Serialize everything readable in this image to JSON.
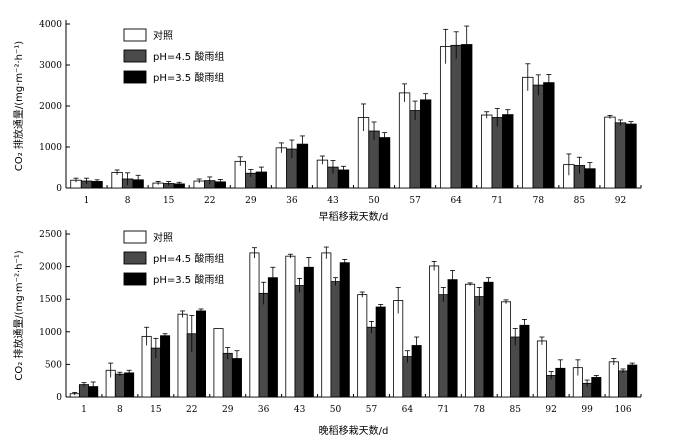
{
  "chart_data": [
    {
      "type": "bar",
      "xlabel": "早稻移栽天数/d",
      "ylabel": "CO₂ 排放通量/(mg·m⁻²·h⁻¹)",
      "ylim": [
        0,
        4000
      ],
      "yticks": [
        0,
        1000,
        2000,
        3000,
        4000
      ],
      "grid": false,
      "legend_position": "top-left",
      "categories": [
        "1",
        "8",
        "15",
        "22",
        "29",
        "36",
        "43",
        "50",
        "57",
        "64",
        "71",
        "78",
        "85",
        "92"
      ],
      "series": [
        {
          "name": "对照",
          "color": "#ffffff",
          "values": [
            190,
            380,
            120,
            170,
            650,
            980,
            680,
            1720,
            2320,
            3450,
            1780,
            2700,
            570,
            1730
          ],
          "errors": [
            50,
            60,
            40,
            50,
            110,
            120,
            100,
            330,
            220,
            420,
            80,
            330,
            260,
            40
          ]
        },
        {
          "name": "pH=4.5 酸雨组",
          "color": "#4a4a4a",
          "values": [
            170,
            220,
            110,
            180,
            360,
            950,
            510,
            1390,
            1890,
            3480,
            1720,
            2510,
            550,
            1590
          ],
          "errors": [
            70,
            150,
            50,
            90,
            90,
            220,
            160,
            220,
            230,
            330,
            220,
            250,
            200,
            70
          ]
        },
        {
          "name": "pH=3.5 酸雨组",
          "color": "#000000",
          "values": [
            160,
            200,
            100,
            150,
            390,
            1070,
            440,
            1230,
            2150,
            3500,
            1790,
            2570,
            470,
            1560
          ],
          "errors": [
            40,
            110,
            40,
            60,
            120,
            200,
            90,
            120,
            150,
            450,
            120,
            200,
            150,
            60
          ]
        }
      ]
    },
    {
      "type": "bar",
      "xlabel": "晚稻移栽天数/d",
      "ylabel": "CO₂ 排放通量/(mg·m⁻²·h⁻¹)",
      "ylim": [
        0,
        2500
      ],
      "yticks": [
        0,
        500,
        1000,
        1500,
        2000,
        2500
      ],
      "grid": false,
      "legend_position": "top-left",
      "categories": [
        "1",
        "8",
        "15",
        "22",
        "29",
        "36",
        "43",
        "50",
        "57",
        "64",
        "71",
        "78",
        "85",
        "92",
        "99",
        "106"
      ],
      "series": [
        {
          "name": "对照",
          "color": "#ffffff",
          "values": [
            50,
            410,
            930,
            1270,
            1050,
            2210,
            2160,
            2210,
            1570,
            1480,
            2010,
            1730,
            1460,
            860,
            450,
            540
          ],
          "errors": [
            20,
            110,
            140,
            50,
            0,
            80,
            30,
            90,
            40,
            200,
            70,
            20,
            30,
            60,
            120,
            50
          ]
        },
        {
          "name": "pH=4.5 酸雨组",
          "color": "#4a4a4a",
          "values": [
            190,
            350,
            750,
            970,
            670,
            1590,
            1710,
            1770,
            1070,
            620,
            1570,
            1540,
            920,
            330,
            210,
            400
          ],
          "errors": [
            30,
            30,
            150,
            280,
            90,
            170,
            110,
            60,
            90,
            90,
            110,
            140,
            130,
            60,
            50,
            30
          ]
        },
        {
          "name": "pH=3.5 酸雨组",
          "color": "#000000",
          "values": [
            160,
            370,
            940,
            1320,
            590,
            1830,
            1990,
            2060,
            1380,
            790,
            1800,
            1760,
            1100,
            440,
            300,
            490
          ],
          "errors": [
            70,
            40,
            30,
            30,
            120,
            160,
            150,
            50,
            40,
            130,
            140,
            70,
            90,
            130,
            30,
            30
          ]
        }
      ]
    }
  ]
}
